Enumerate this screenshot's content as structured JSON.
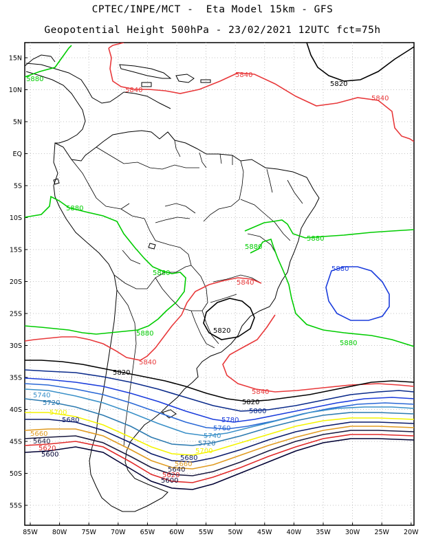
{
  "title_line1": "CPTEC/INPE/MCT -  Eta Model 15km - GFS",
  "title_line2": "Geopotential Height 500hPa - 23/02/2021 12UTC fct=75h",
  "lat_ticks": [
    "15N",
    "10N",
    "5N",
    "EQ",
    "5S",
    "10S",
    "15S",
    "20S",
    "25S",
    "30S",
    "35S",
    "40S",
    "45S",
    "50S",
    "55S"
  ],
  "lon_ticks": [
    "85W",
    "80W",
    "75W",
    "70W",
    "65W",
    "60W",
    "55W",
    "50W",
    "45W",
    "40W",
    "35W",
    "30W",
    "25W",
    "20W"
  ],
  "colors": {
    "5880": "#00cc00",
    "5840": "#e8383a",
    "5820": "#000000",
    "5800": "#0a2a8a",
    "5780": "#1a3cdc",
    "5760": "#2a68d6",
    "5740": "#3a90c8",
    "5720": "#2c7ab0",
    "5700": "#f4f400",
    "5680": "#0a1a6a",
    "5660": "#e09a20",
    "5640": "#1a1a40",
    "5620": "#e02828",
    "5600": "#000033"
  },
  "contour_labels": {
    "l5880a": "5880",
    "l5880b": "5880",
    "l5880c": "5880",
    "l5880d": "5880",
    "l5880e": "5880",
    "l5880f": "5880",
    "l5880g": "5880",
    "l5880h": "5880",
    "l5840a": "5840",
    "l5840b": "5840",
    "l5840c": "5840",
    "l5840d": "5840",
    "l5840e": "5840",
    "l5840f": "5840",
    "l5820a": "5820",
    "l5820b": "5820",
    "l5820c": "5820",
    "l5820d": "5820",
    "l5800a": "5800",
    "l5780a": "5780",
    "l5760a": "5760",
    "l5740a": "5740",
    "l5740b": "5740",
    "l5720a": "5720",
    "l5720b": "5720",
    "l5700a": "5700",
    "l5700b": "5700",
    "l5680a": "5680",
    "l5680b": "5680",
    "l5660a": "5660",
    "l5660b": "5660",
    "l5640a": "5640",
    "l5640b": "5640",
    "l5620a": "5620",
    "l5620b": "5620",
    "l5600a": "5600",
    "l5600b": "5600"
  }
}
